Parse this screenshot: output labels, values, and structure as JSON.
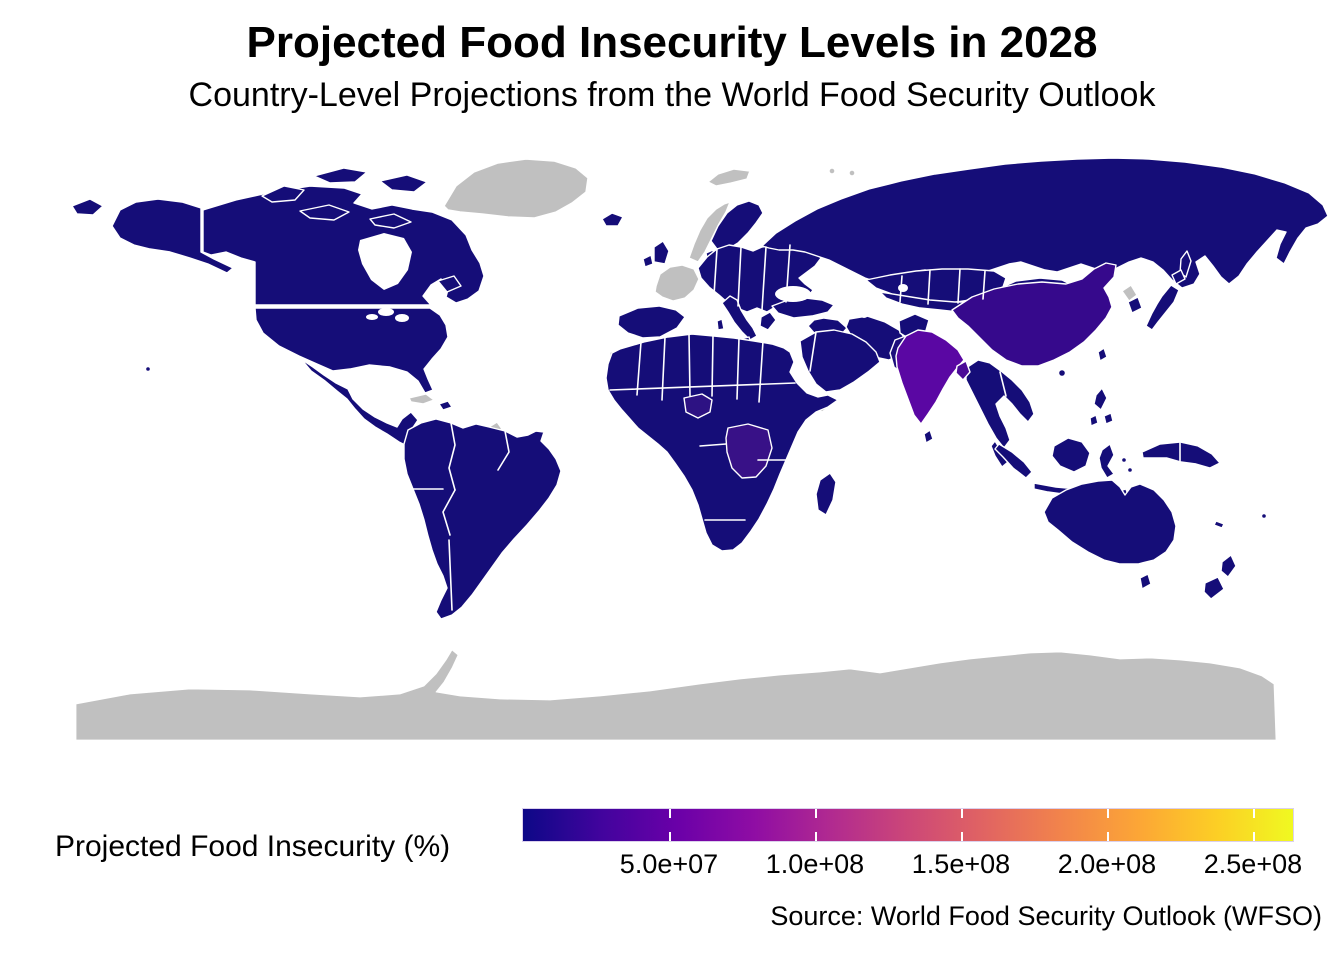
{
  "title": "Projected Food Insecurity Levels in 2028",
  "subtitle": "Country-Level Projections from the World Food Security Outlook",
  "source": "Source: World Food Security Outlook (WFSO)",
  "legend": {
    "label": "Projected Food Insecurity (%)",
    "tick_labels": [
      "5.0e+07",
      "1.0e+08",
      "1.5e+08",
      "2.0e+08",
      "2.5e+08"
    ],
    "tick_values": [
      50000000,
      100000000,
      150000000,
      200000000,
      250000000
    ],
    "vmin": 0,
    "vmax": 263700000,
    "palette": "plasma",
    "gradient_stops": [
      "#0d0887",
      "#41049d",
      "#6a00a8",
      "#8f0da4",
      "#b12a90",
      "#cc4778",
      "#e16462",
      "#f2844b",
      "#fca636",
      "#fcce25",
      "#f0f921"
    ]
  },
  "colors": {
    "base": "#150d78",
    "no_data": "#c0c0c0",
    "china": "#36098c",
    "india": "#5a07a3",
    "bangladesh": "#4b0b97",
    "pakistan": "#1d0e7c",
    "nigeria": "#2d1283",
    "drc": "#381187",
    "ocean": "#ffffff",
    "border": "#ffffff"
  },
  "chart_data": {
    "type": "choropleth",
    "map": "world, equirectangular outline map with white country borders on white ocean",
    "title": "Projected Food Insecurity Levels in 2028",
    "subtitle": "Country-Level Projections from the World Food Security Outlook",
    "source": "Source: World Food Security Outlook (WFSO)",
    "colorbar": {
      "label": "Projected Food Insecurity (%)",
      "orientation": "horizontal",
      "tick_labels": [
        "5.0e+07",
        "1.0e+08",
        "1.5e+08",
        "2.0e+08",
        "2.5e+08"
      ],
      "tick_values": [
        50000000,
        100000000,
        150000000,
        200000000,
        250000000
      ],
      "range": [
        0,
        263700000
      ],
      "palette": "plasma"
    },
    "regions": [
      {
        "name": "India",
        "fill": "#5a07a3",
        "note": "highest shading on map (violet)"
      },
      {
        "name": "China",
        "fill": "#36098c",
        "note": "second-highest shading (indigo-purple)"
      },
      {
        "name": "Bangladesh",
        "fill": "#4b0b97"
      },
      {
        "name": "Pakistan",
        "fill": "#1d0e7c"
      },
      {
        "name": "Nigeria",
        "fill": "#2d1283"
      },
      {
        "name": "DR Congo",
        "fill": "#381187"
      },
      {
        "name": "All other reporting countries",
        "fill": "#150d78",
        "note": "dark navy, low end of plasma scale"
      },
      {
        "name": "No data (grey): Greenland, Antarctica, France, Norway, Svalbard, North Korea, Somalia, Western Sahara, Cuba, French Guiana",
        "fill": "#c0c0c0"
      }
    ]
  }
}
